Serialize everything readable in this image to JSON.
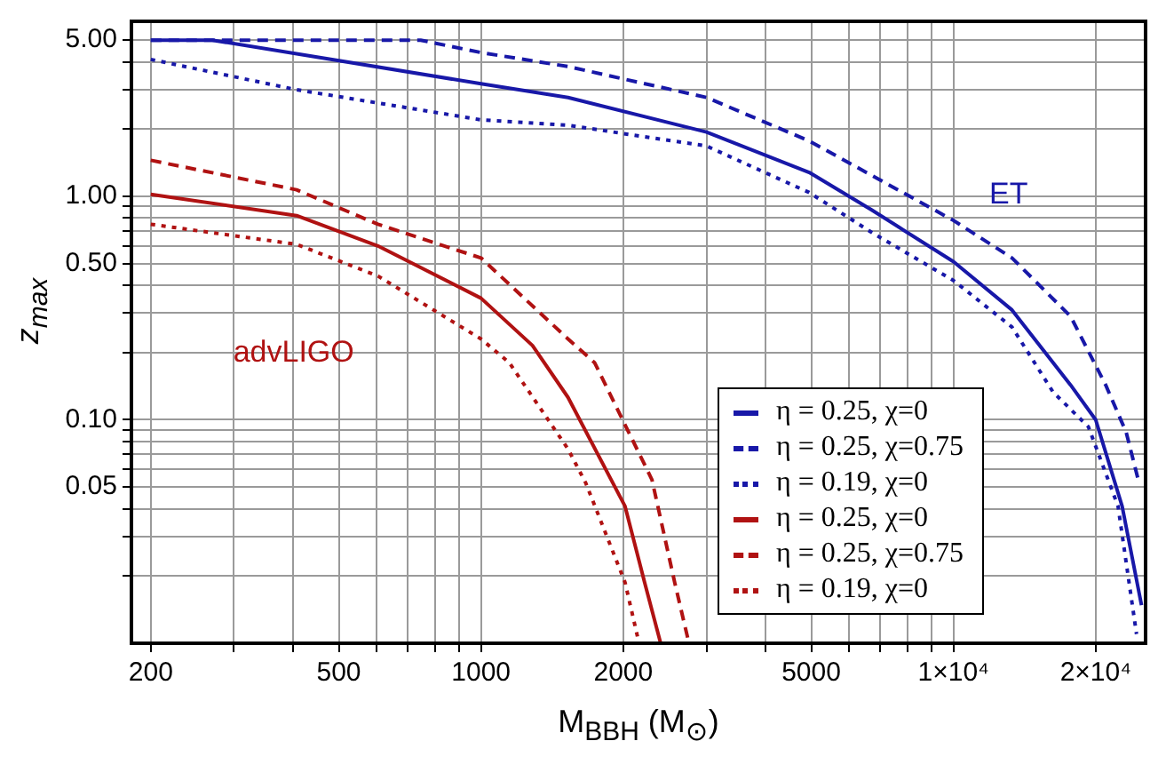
{
  "chart_data": {
    "type": "line",
    "xlabel": "M$_{BBH}$ (M$_{⊙}$)",
    "ylabel": "z$_{max}$",
    "log": "xy",
    "grid": true,
    "legend": "bottom right",
    "marker": "none",
    "xlim": [
      182,
      25500
    ],
    "ylim": [
      0.01,
      6.07
    ],
    "xticks": [
      200,
      {
        "value": 300,
        "label": null
      },
      {
        "value": 400,
        "label": null
      },
      500,
      {
        "value": 600,
        "label": null
      },
      {
        "value": 700,
        "label": null
      },
      {
        "value": 800,
        "label": null
      },
      {
        "value": 900,
        "label": null
      },
      1000,
      2000,
      {
        "value": 3000,
        "label": null
      },
      {
        "value": 4000,
        "label": null
      },
      5000,
      {
        "value": 6000,
        "label": null
      },
      {
        "value": 7000,
        "label": null
      },
      {
        "value": 8000,
        "label": null
      },
      {
        "value": 9000,
        "label": null
      },
      {
        "value": 10000,
        "label": "1×10⁴"
      },
      {
        "value": 20000,
        "label": "2×10⁴"
      }
    ],
    "yticks": [
      {
        "value": 0.02,
        "label": null
      },
      {
        "value": 0.03,
        "label": null
      },
      {
        "value": 0.04,
        "label": null
      },
      {
        "value": 0.05,
        "label": "0.05"
      },
      {
        "value": 0.06,
        "label": null
      },
      {
        "value": 0.07,
        "label": null
      },
      {
        "value": 0.08,
        "label": null
      },
      {
        "value": 0.09,
        "label": null
      },
      {
        "value": 0.1,
        "label": "0.10"
      },
      {
        "value": 0.2,
        "label": null
      },
      {
        "value": 0.3,
        "label": null
      },
      {
        "value": 0.4,
        "label": null
      },
      {
        "value": 0.5,
        "label": "0.50"
      },
      {
        "value": 0.6,
        "label": null
      },
      {
        "value": 0.7,
        "label": null
      },
      {
        "value": 0.8,
        "label": null
      },
      {
        "value": 0.9,
        "label": null
      },
      {
        "value": 1,
        "label": "1.00"
      },
      {
        "value": 2,
        "label": null
      },
      {
        "value": 3,
        "label": null
      },
      {
        "value": 4,
        "label": null
      },
      {
        "value": 5,
        "label": "5.00"
      }
    ],
    "annotations": [
      "ET",
      "advLIGO"
    ],
    "series": [
      {
        "name": "η = 0.25, χ=0",
        "color": "#1818a8",
        "line_style": "solid",
        "x": [
          200,
          270,
          1000,
          1528,
          3000,
          4950,
          6710,
          10000,
          13300,
          17700,
          20000,
          22750,
          25000
        ],
        "values": [
          5.0,
          5.0,
          3.19,
          2.77,
          1.94,
          1.28,
          0.87,
          0.51,
          0.31,
          0.143,
          0.1,
          0.041,
          0.0148
        ]
      },
      {
        "name": "η = 0.25, χ=0.75",
        "color": "#1818a8",
        "line_style": "dashed",
        "x": [
          200,
          745,
          1000,
          1528,
          3000,
          4950,
          10000,
          13300,
          17700,
          21000,
          23200,
          24600
        ],
        "values": [
          5.0,
          5.0,
          4.4,
          3.81,
          2.77,
          1.77,
          0.78,
          0.53,
          0.29,
          0.143,
          0.088,
          0.054
        ]
      },
      {
        "name": "η = 0.19, χ=0",
        "color": "#1818a8",
        "line_style": "dotted",
        "x": [
          200,
          407,
          1000,
          1528,
          3000,
          4950,
          6710,
          10000,
          13300,
          16250,
          19300,
          22300,
          24400
        ],
        "values": [
          4.1,
          3.0,
          2.2,
          2.08,
          1.68,
          1.04,
          0.69,
          0.42,
          0.26,
          0.133,
          0.093,
          0.041,
          0.011
        ]
      },
      {
        "name": "η = 0.25, χ=0",
        "color": "#b01212",
        "line_style": "solid",
        "x": [
          200,
          407,
          605,
          1000,
          1285,
          1528,
          2018,
          2220,
          2400
        ],
        "values": [
          1.02,
          0.82,
          0.6,
          0.35,
          0.215,
          0.126,
          0.041,
          0.0187,
          0.01
        ]
      },
      {
        "name": "η = 0.25, χ=0.75",
        "color": "#b01212",
        "line_style": "dashed",
        "x": [
          200,
          407,
          605,
          1000,
          1528,
          1740,
          2300,
          2570,
          2755
        ],
        "values": [
          1.45,
          1.07,
          0.75,
          0.53,
          0.23,
          0.18,
          0.054,
          0.0187,
          0.01
        ]
      },
      {
        "name": "η = 0.19, χ=0",
        "color": "#b01212",
        "line_style": "dotted",
        "x": [
          200,
          407,
          605,
          1000,
          1148,
          1528,
          1667,
          2018,
          2160
        ],
        "values": [
          0.75,
          0.61,
          0.44,
          0.23,
          0.18,
          0.074,
          0.052,
          0.0187,
          0.01
        ]
      }
    ]
  }
}
